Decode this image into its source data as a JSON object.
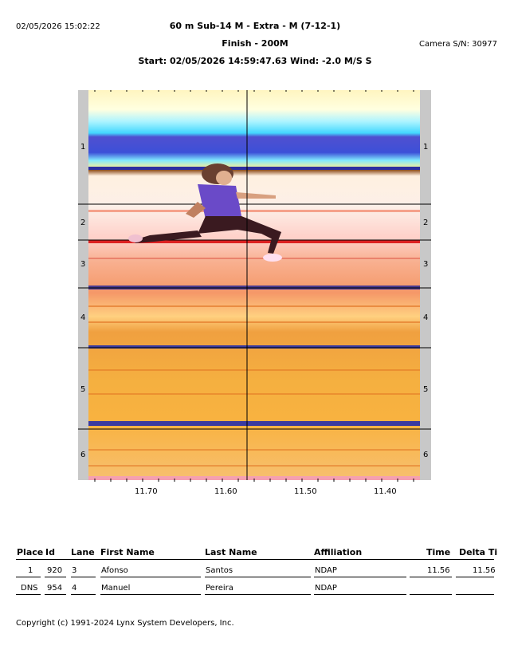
{
  "header": {
    "timestamp": "02/05/2026 15:02:22",
    "title": "60 m  Sub-14 M - Extra - M (7-12-1)",
    "subtitle": "Finish - 200M",
    "start_info": "Start: 02/05/2026 14:59:47.63    Wind: -2.0 M/S S",
    "camera": "Camera S/N: 30977"
  },
  "lanes": [
    "1",
    "2",
    "3",
    "4",
    "5",
    "6"
  ],
  "time_ticks": [
    "11.70",
    "11.60",
    "11.50",
    "11.40"
  ],
  "table": {
    "columns": [
      "Place",
      "Id",
      "Lane",
      "First Name",
      "Last Name",
      "Affiliation",
      "Time",
      "Delta Ti"
    ],
    "rows": [
      {
        "place": "1",
        "id": "920",
        "lane": "3",
        "first": "Afonso",
        "last": "Santos",
        "affiliation": "NDAP",
        "time": "11.56",
        "delta": "11.56"
      },
      {
        "place": "DNS",
        "id": "954",
        "lane": "4",
        "first": "Manuel",
        "last": "Pereira",
        "affiliation": "NDAP",
        "time": "",
        "delta": ""
      }
    ]
  },
  "footer": "Copyright (c) 1991-2024 Lynx System Developers, Inc."
}
